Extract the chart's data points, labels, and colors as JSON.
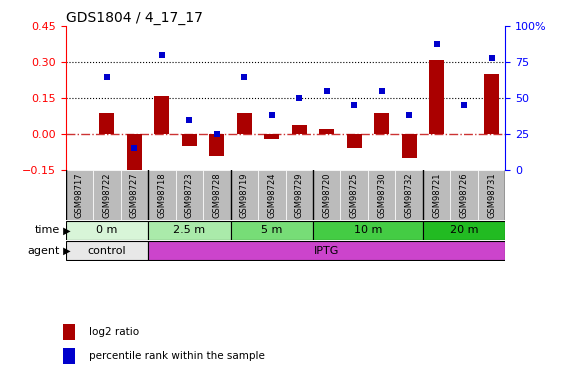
{
  "title": "GDS1804 / 4_17_17",
  "samples": [
    "GSM98717",
    "GSM98722",
    "GSM98727",
    "GSM98718",
    "GSM98723",
    "GSM98728",
    "GSM98719",
    "GSM98724",
    "GSM98729",
    "GSM98720",
    "GSM98725",
    "GSM98730",
    "GSM98732",
    "GSM98721",
    "GSM98726",
    "GSM98731"
  ],
  "log2_ratio": [
    0.0,
    0.09,
    -0.18,
    0.16,
    -0.05,
    -0.09,
    0.09,
    -0.02,
    0.04,
    0.02,
    -0.06,
    0.09,
    -0.1,
    0.31,
    0.0,
    0.25
  ],
  "pct_rank": [
    null,
    65,
    15,
    80,
    35,
    25,
    65,
    38,
    50,
    55,
    45,
    55,
    38,
    88,
    45,
    78
  ],
  "ylim_left": [
    -0.15,
    0.45
  ],
  "ylim_right": [
    0,
    100
  ],
  "yticks_left": [
    -0.15,
    0,
    0.15,
    0.3,
    0.45
  ],
  "yticks_right": [
    0,
    25,
    50,
    75,
    100
  ],
  "ytick_labels_right": [
    "0",
    "25",
    "50",
    "75",
    "100%"
  ],
  "hlines": [
    0.15,
    0.3
  ],
  "time_groups": [
    {
      "label": "0 m",
      "start": 0,
      "end": 3,
      "color": "#d8f5d8"
    },
    {
      "label": "2.5 m",
      "start": 3,
      "end": 6,
      "color": "#aaeaaa"
    },
    {
      "label": "5 m",
      "start": 6,
      "end": 9,
      "color": "#77dd77"
    },
    {
      "label": "10 m",
      "start": 9,
      "end": 13,
      "color": "#44cc44"
    },
    {
      "label": "20 m",
      "start": 13,
      "end": 16,
      "color": "#22bb22"
    }
  ],
  "agent_groups": [
    {
      "label": "control",
      "start": 0,
      "end": 3,
      "color": "#e8e8e8"
    },
    {
      "label": "IPTG",
      "start": 3,
      "end": 16,
      "color": "#cc44cc"
    }
  ],
  "bar_color": "#aa0000",
  "dot_color": "#0000cc",
  "zero_line_color": "#cc3333",
  "dotted_line_color": "#000000",
  "background_color": "#ffffff",
  "cell_bg_color": "#bbbbbb",
  "bar_width": 0.55,
  "dot_size": 5,
  "legend_items": [
    "log2 ratio",
    "percentile rank within the sample"
  ],
  "legend_colors": [
    "#aa0000",
    "#0000cc"
  ]
}
